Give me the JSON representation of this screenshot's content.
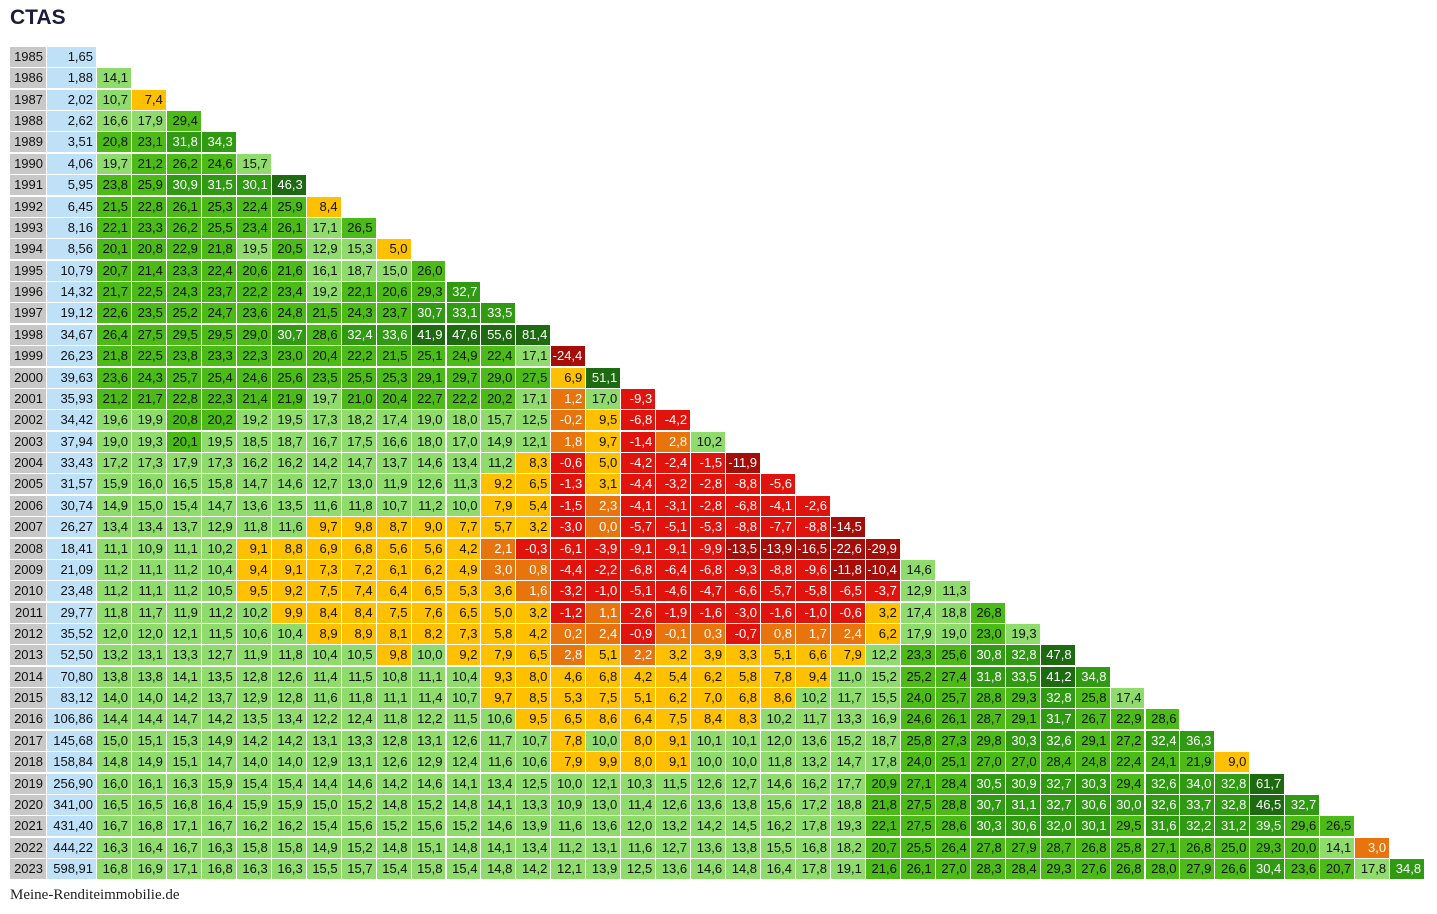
{
  "title": "CTAS",
  "footer": "Meine-Renditeimmobilie.de",
  "table": {
    "rows": [
      {
        "year": "1985",
        "price": "1,65",
        "returns": []
      },
      {
        "year": "1986",
        "price": "1,88",
        "returns": [
          "14,1"
        ]
      },
      {
        "year": "1987",
        "price": "2,02",
        "returns": [
          "10,7",
          "7,4"
        ]
      },
      {
        "year": "1988",
        "price": "2,62",
        "returns": [
          "16,6",
          "17,9",
          "29,4"
        ]
      },
      {
        "year": "1989",
        "price": "3,51",
        "returns": [
          "20,8",
          "23,1",
          "31,8",
          "34,3"
        ]
      },
      {
        "year": "1990",
        "price": "4,06",
        "returns": [
          "19,7",
          "21,2",
          "26,2",
          "24,6",
          "15,7"
        ]
      },
      {
        "year": "1991",
        "price": "5,95",
        "returns": [
          "23,8",
          "25,9",
          "30,9",
          "31,5",
          "30,1",
          "46,3"
        ]
      },
      {
        "year": "1992",
        "price": "6,45",
        "returns": [
          "21,5",
          "22,8",
          "26,1",
          "25,3",
          "22,4",
          "25,9",
          "8,4"
        ]
      },
      {
        "year": "1993",
        "price": "8,16",
        "returns": [
          "22,1",
          "23,3",
          "26,2",
          "25,5",
          "23,4",
          "26,1",
          "17,1",
          "26,5"
        ]
      },
      {
        "year": "1994",
        "price": "8,56",
        "returns": [
          "20,1",
          "20,8",
          "22,9",
          "21,8",
          "19,5",
          "20,5",
          "12,9",
          "15,3",
          "5,0"
        ]
      },
      {
        "year": "1995",
        "price": "10,79",
        "returns": [
          "20,7",
          "21,4",
          "23,3",
          "22,4",
          "20,6",
          "21,6",
          "16,1",
          "18,7",
          "15,0",
          "26,0"
        ]
      },
      {
        "year": "1996",
        "price": "14,32",
        "returns": [
          "21,7",
          "22,5",
          "24,3",
          "23,7",
          "22,2",
          "23,4",
          "19,2",
          "22,1",
          "20,6",
          "29,3",
          "32,7"
        ]
      },
      {
        "year": "1997",
        "price": "19,12",
        "returns": [
          "22,6",
          "23,5",
          "25,2",
          "24,7",
          "23,6",
          "24,8",
          "21,5",
          "24,3",
          "23,7",
          "30,7",
          "33,1",
          "33,5"
        ]
      },
      {
        "year": "1998",
        "price": "34,67",
        "returns": [
          "26,4",
          "27,5",
          "29,5",
          "29,5",
          "29,0",
          "30,7",
          "28,6",
          "32,4",
          "33,6",
          "41,9",
          "47,6",
          "55,6",
          "81,4"
        ]
      },
      {
        "year": "1999",
        "price": "26,23",
        "returns": [
          "21,8",
          "22,5",
          "23,8",
          "23,3",
          "22,3",
          "23,0",
          "20,4",
          "22,2",
          "21,5",
          "25,1",
          "24,9",
          "22,4",
          "17,1",
          "-24,4"
        ]
      },
      {
        "year": "2000",
        "price": "39,63",
        "returns": [
          "23,6",
          "24,3",
          "25,7",
          "25,4",
          "24,6",
          "25,6",
          "23,5",
          "25,5",
          "25,3",
          "29,1",
          "29,7",
          "29,0",
          "27,5",
          "6,9",
          "51,1"
        ]
      },
      {
        "year": "2001",
        "price": "35,93",
        "returns": [
          "21,2",
          "21,7",
          "22,8",
          "22,3",
          "21,4",
          "21,9",
          "19,7",
          "21,0",
          "20,4",
          "22,7",
          "22,2",
          "20,2",
          "17,1",
          "1,2",
          "17,0",
          "-9,3"
        ]
      },
      {
        "year": "2002",
        "price": "34,42",
        "returns": [
          "19,6",
          "19,9",
          "20,8",
          "20,2",
          "19,2",
          "19,5",
          "17,3",
          "18,2",
          "17,4",
          "19,0",
          "18,0",
          "15,7",
          "12,5",
          "-0,2",
          "9,5",
          "-6,8",
          "-4,2"
        ]
      },
      {
        "year": "2003",
        "price": "37,94",
        "returns": [
          "19,0",
          "19,3",
          "20,1",
          "19,5",
          "18,5",
          "18,7",
          "16,7",
          "17,5",
          "16,6",
          "18,0",
          "17,0",
          "14,9",
          "12,1",
          "1,8",
          "9,7",
          "-1,4",
          "2,8",
          "10,2"
        ]
      },
      {
        "year": "2004",
        "price": "33,43",
        "returns": [
          "17,2",
          "17,3",
          "17,9",
          "17,3",
          "16,2",
          "16,2",
          "14,2",
          "14,7",
          "13,7",
          "14,6",
          "13,4",
          "11,2",
          "8,3",
          "-0,6",
          "5,0",
          "-4,2",
          "-2,4",
          "-1,5",
          "-11,9"
        ]
      },
      {
        "year": "2005",
        "price": "31,57",
        "returns": [
          "15,9",
          "16,0",
          "16,5",
          "15,8",
          "14,7",
          "14,6",
          "12,7",
          "13,0",
          "11,9",
          "12,6",
          "11,3",
          "9,2",
          "6,5",
          "-1,3",
          "3,1",
          "-4,4",
          "-3,2",
          "-2,8",
          "-8,8",
          "-5,6"
        ]
      },
      {
        "year": "2006",
        "price": "30,74",
        "returns": [
          "14,9",
          "15,0",
          "15,4",
          "14,7",
          "13,6",
          "13,5",
          "11,6",
          "11,8",
          "10,7",
          "11,2",
          "10,0",
          "7,9",
          "5,4",
          "-1,5",
          "2,3",
          "-4,1",
          "-3,1",
          "-2,8",
          "-6,8",
          "-4,1",
          "-2,6"
        ]
      },
      {
        "year": "2007",
        "price": "26,27",
        "returns": [
          "13,4",
          "13,4",
          "13,7",
          "12,9",
          "11,8",
          "11,6",
          "9,7",
          "9,8",
          "8,7",
          "9,0",
          "7,7",
          "5,7",
          "3,2",
          "-3,0",
          "0,0",
          "-5,7",
          "-5,1",
          "-5,3",
          "-8,8",
          "-7,7",
          "-8,8",
          "-14,5"
        ]
      },
      {
        "year": "2008",
        "price": "18,41",
        "returns": [
          "11,1",
          "10,9",
          "11,1",
          "10,2",
          "9,1",
          "8,8",
          "6,9",
          "6,8",
          "5,6",
          "5,6",
          "4,2",
          "2,1",
          "-0,3",
          "-6,1",
          "-3,9",
          "-9,1",
          "-9,1",
          "-9,9",
          "-13,5",
          "-13,9",
          "-16,5",
          "-22,6",
          "-29,9"
        ]
      },
      {
        "year": "2009",
        "price": "21,09",
        "returns": [
          "11,2",
          "11,1",
          "11,2",
          "10,4",
          "9,4",
          "9,1",
          "7,3",
          "7,2",
          "6,1",
          "6,2",
          "4,9",
          "3,0",
          "0,8",
          "-4,4",
          "-2,2",
          "-6,8",
          "-6,4",
          "-6,8",
          "-9,3",
          "-8,8",
          "-9,6",
          "-11,8",
          "-10,4",
          "14,6"
        ]
      },
      {
        "year": "2010",
        "price": "23,48",
        "returns": [
          "11,2",
          "11,1",
          "11,2",
          "10,5",
          "9,5",
          "9,2",
          "7,5",
          "7,4",
          "6,4",
          "6,5",
          "5,3",
          "3,6",
          "1,6",
          "-3,2",
          "-1,0",
          "-5,1",
          "-4,6",
          "-4,7",
          "-6,6",
          "-5,7",
          "-5,8",
          "-6,5",
          "-3,7",
          "12,9",
          "11,3"
        ]
      },
      {
        "year": "2011",
        "price": "29,77",
        "returns": [
          "11,8",
          "11,7",
          "11,9",
          "11,2",
          "10,2",
          "9,9",
          "8,4",
          "8,4",
          "7,5",
          "7,6",
          "6,5",
          "5,0",
          "3,2",
          "-1,2",
          "1,1",
          "-2,6",
          "-1,9",
          "-1,6",
          "-3,0",
          "-1,6",
          "-1,0",
          "-0,6",
          "3,2",
          "17,4",
          "18,8",
          "26,8"
        ]
      },
      {
        "year": "2012",
        "price": "35,52",
        "returns": [
          "12,0",
          "12,0",
          "12,1",
          "11,5",
          "10,6",
          "10,4",
          "8,9",
          "8,9",
          "8,1",
          "8,2",
          "7,3",
          "5,8",
          "4,2",
          "0,2",
          "2,4",
          "-0,9",
          "-0,1",
          "0,3",
          "-0,7",
          "0,8",
          "1,7",
          "2,4",
          "6,2",
          "17,9",
          "19,0",
          "23,0",
          "19,3"
        ]
      },
      {
        "year": "2013",
        "price": "52,50",
        "returns": [
          "13,2",
          "13,1",
          "13,3",
          "12,7",
          "11,9",
          "11,8",
          "10,4",
          "10,5",
          "9,8",
          "10,0",
          "9,2",
          "7,9",
          "6,5",
          "2,8",
          "5,1",
          "2,2",
          "3,2",
          "3,9",
          "3,3",
          "5,1",
          "6,6",
          "7,9",
          "12,2",
          "23,3",
          "25,6",
          "30,8",
          "32,8",
          "47,8"
        ]
      },
      {
        "year": "2014",
        "price": "70,80",
        "returns": [
          "13,8",
          "13,8",
          "14,1",
          "13,5",
          "12,8",
          "12,6",
          "11,4",
          "11,5",
          "10,8",
          "11,1",
          "10,4",
          "9,3",
          "8,0",
          "4,6",
          "6,8",
          "4,2",
          "5,4",
          "6,2",
          "5,8",
          "7,8",
          "9,4",
          "11,0",
          "15,2",
          "25,2",
          "27,4",
          "31,8",
          "33,5",
          "41,2",
          "34,8"
        ]
      },
      {
        "year": "2015",
        "price": "83,12",
        "returns": [
          "14,0",
          "14,0",
          "14,2",
          "13,7",
          "12,9",
          "12,8",
          "11,6",
          "11,8",
          "11,1",
          "11,4",
          "10,7",
          "9,7",
          "8,5",
          "5,3",
          "7,5",
          "5,1",
          "6,2",
          "7,0",
          "6,8",
          "8,6",
          "10,2",
          "11,7",
          "15,5",
          "24,0",
          "25,7",
          "28,8",
          "29,3",
          "32,8",
          "25,8",
          "17,4"
        ]
      },
      {
        "year": "2016",
        "price": "106,86",
        "returns": [
          "14,4",
          "14,4",
          "14,7",
          "14,2",
          "13,5",
          "13,4",
          "12,2",
          "12,4",
          "11,8",
          "12,2",
          "11,5",
          "10,6",
          "9,5",
          "6,5",
          "8,6",
          "6,4",
          "7,5",
          "8,4",
          "8,3",
          "10,2",
          "11,7",
          "13,3",
          "16,9",
          "24,6",
          "26,1",
          "28,7",
          "29,1",
          "31,7",
          "26,7",
          "22,9",
          "28,6"
        ]
      },
      {
        "year": "2017",
        "price": "145,68",
        "returns": [
          "15,0",
          "15,1",
          "15,3",
          "14,9",
          "14,2",
          "14,2",
          "13,1",
          "13,3",
          "12,8",
          "13,1",
          "12,6",
          "11,7",
          "10,7",
          "7,8",
          "10,0",
          "8,0",
          "9,1",
          "10,1",
          "10,1",
          "12,0",
          "13,6",
          "15,2",
          "18,7",
          "25,8",
          "27,3",
          "29,8",
          "30,3",
          "32,6",
          "29,1",
          "27,2",
          "32,4",
          "36,3"
        ]
      },
      {
        "year": "2018",
        "price": "158,84",
        "returns": [
          "14,8",
          "14,9",
          "15,1",
          "14,7",
          "14,0",
          "14,0",
          "12,9",
          "13,1",
          "12,6",
          "12,9",
          "12,4",
          "11,6",
          "10,6",
          "7,9",
          "9,9",
          "8,0",
          "9,1",
          "10,0",
          "10,0",
          "11,8",
          "13,2",
          "14,7",
          "17,8",
          "24,0",
          "25,1",
          "27,0",
          "27,0",
          "28,4",
          "24,8",
          "22,4",
          "24,1",
          "21,9",
          "9,0"
        ]
      },
      {
        "year": "2019",
        "price": "256,90",
        "returns": [
          "16,0",
          "16,1",
          "16,3",
          "15,9",
          "15,4",
          "15,4",
          "14,4",
          "14,6",
          "14,2",
          "14,6",
          "14,1",
          "13,4",
          "12,5",
          "10,0",
          "12,1",
          "10,3",
          "11,5",
          "12,6",
          "12,7",
          "14,6",
          "16,2",
          "17,7",
          "20,9",
          "27,1",
          "28,4",
          "30,5",
          "30,9",
          "32,7",
          "30,3",
          "29,4",
          "32,6",
          "34,0",
          "32,8",
          "61,7"
        ]
      },
      {
        "year": "2020",
        "price": "341,00",
        "returns": [
          "16,5",
          "16,5",
          "16,8",
          "16,4",
          "15,9",
          "15,9",
          "15,0",
          "15,2",
          "14,8",
          "15,2",
          "14,8",
          "14,1",
          "13,3",
          "10,9",
          "13,0",
          "11,4",
          "12,6",
          "13,6",
          "13,8",
          "15,6",
          "17,2",
          "18,8",
          "21,8",
          "27,5",
          "28,8",
          "30,7",
          "31,1",
          "32,7",
          "30,6",
          "30,0",
          "32,6",
          "33,7",
          "32,8",
          "46,5",
          "32,7"
        ]
      },
      {
        "year": "2021",
        "price": "431,40",
        "returns": [
          "16,7",
          "16,8",
          "17,1",
          "16,7",
          "16,2",
          "16,2",
          "15,4",
          "15,6",
          "15,2",
          "15,6",
          "15,2",
          "14,6",
          "13,9",
          "11,6",
          "13,6",
          "12,0",
          "13,2",
          "14,2",
          "14,5",
          "16,2",
          "17,8",
          "19,3",
          "22,1",
          "27,5",
          "28,6",
          "30,3",
          "30,6",
          "32,0",
          "30,1",
          "29,5",
          "31,6",
          "32,2",
          "31,2",
          "39,5",
          "29,6",
          "26,5"
        ]
      },
      {
        "year": "2022",
        "price": "444,22",
        "returns": [
          "16,3",
          "16,4",
          "16,7",
          "16,3",
          "15,8",
          "15,8",
          "14,9",
          "15,2",
          "14,8",
          "15,1",
          "14,8",
          "14,1",
          "13,4",
          "11,2",
          "13,1",
          "11,6",
          "12,7",
          "13,6",
          "13,8",
          "15,5",
          "16,8",
          "18,2",
          "20,7",
          "25,5",
          "26,4",
          "27,8",
          "27,9",
          "28,7",
          "26,8",
          "25,8",
          "27,1",
          "26,8",
          "25,0",
          "29,3",
          "20,0",
          "14,1",
          "3,0"
        ]
      },
      {
        "year": "2023",
        "price": "598,91",
        "returns": [
          "16,8",
          "16,9",
          "17,1",
          "16,8",
          "16,3",
          "16,3",
          "15,5",
          "15,7",
          "15,4",
          "15,8",
          "15,4",
          "14,8",
          "14,2",
          "12,1",
          "13,9",
          "12,5",
          "13,6",
          "14,6",
          "14,8",
          "16,4",
          "17,8",
          "19,1",
          "21,6",
          "26,1",
          "27,0",
          "28,3",
          "28,4",
          "29,3",
          "27,6",
          "26,8",
          "28,0",
          "27,9",
          "26,6",
          "30,4",
          "23,6",
          "20,7",
          "17,8",
          "34,8"
        ]
      }
    ]
  }
}
